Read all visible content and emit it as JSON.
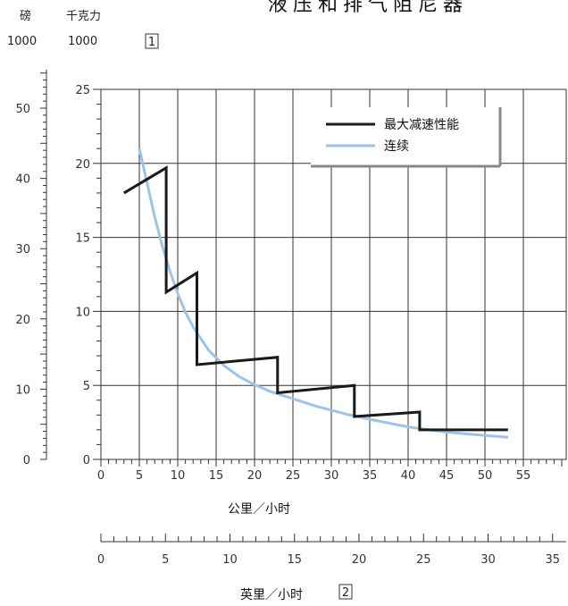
{
  "title": "液压和排气阻尼器",
  "header": {
    "lb_unit": "磅",
    "kgf_unit": "千克力",
    "lb_mult": "1000",
    "kgf_mult": "1000",
    "footnote_1": "1"
  },
  "x_labels": {
    "kmh": "公里／小时",
    "mph": "英里／小时",
    "footnote_2": "2"
  },
  "colors": {
    "max_decel": "#1a1a1a",
    "continuous": "#9cc4e8",
    "grid": "#333333"
  },
  "chart_data": {
    "type": "line",
    "title": "液压和排气阻尼器",
    "xlabel": "公里／小时",
    "ylabel": "千克力 1000",
    "xlim": [
      0,
      58
    ],
    "ylim": [
      0,
      25
    ],
    "x_ticks": [
      0,
      5,
      10,
      15,
      20,
      25,
      30,
      35,
      40,
      45,
      50,
      55
    ],
    "y_ticks": [
      0,
      5,
      10,
      15,
      20,
      25
    ],
    "secondary_y": {
      "label": "磅 1000",
      "ticks": [
        0,
        10,
        20,
        30,
        40,
        50
      ]
    },
    "secondary_x": {
      "label": "英里／小时",
      "ticks": [
        0,
        5,
        10,
        15,
        20,
        25,
        30,
        35
      ]
    },
    "grid": true,
    "legend_position": "top-right",
    "series": [
      {
        "name": "最大减速性能",
        "points": [
          [
            3,
            18
          ],
          [
            8.5,
            19.7
          ],
          [
            8.5,
            11.3
          ],
          [
            12.5,
            12.6
          ],
          [
            12.5,
            6.4
          ],
          [
            23,
            6.9
          ],
          [
            23,
            4.5
          ],
          [
            33,
            5
          ],
          [
            33,
            2.9
          ],
          [
            41.5,
            3.2
          ],
          [
            41.5,
            2
          ],
          [
            53,
            2
          ]
        ]
      },
      {
        "name": "连续",
        "points": [
          [
            5,
            21
          ],
          [
            6,
            18.7
          ],
          [
            7,
            16.4
          ],
          [
            8,
            14.4
          ],
          [
            9,
            12.7
          ],
          [
            10,
            11.2
          ],
          [
            11,
            9.95
          ],
          [
            12,
            8.95
          ],
          [
            14,
            7.4
          ],
          [
            16,
            6.35
          ],
          [
            18,
            5.6
          ],
          [
            20,
            5.05
          ],
          [
            22,
            4.6
          ],
          [
            25,
            4.1
          ],
          [
            28,
            3.6
          ],
          [
            32,
            3.05
          ],
          [
            36,
            2.6
          ],
          [
            40,
            2.2
          ],
          [
            44,
            1.9
          ],
          [
            48,
            1.7
          ],
          [
            53,
            1.5
          ]
        ]
      }
    ]
  }
}
